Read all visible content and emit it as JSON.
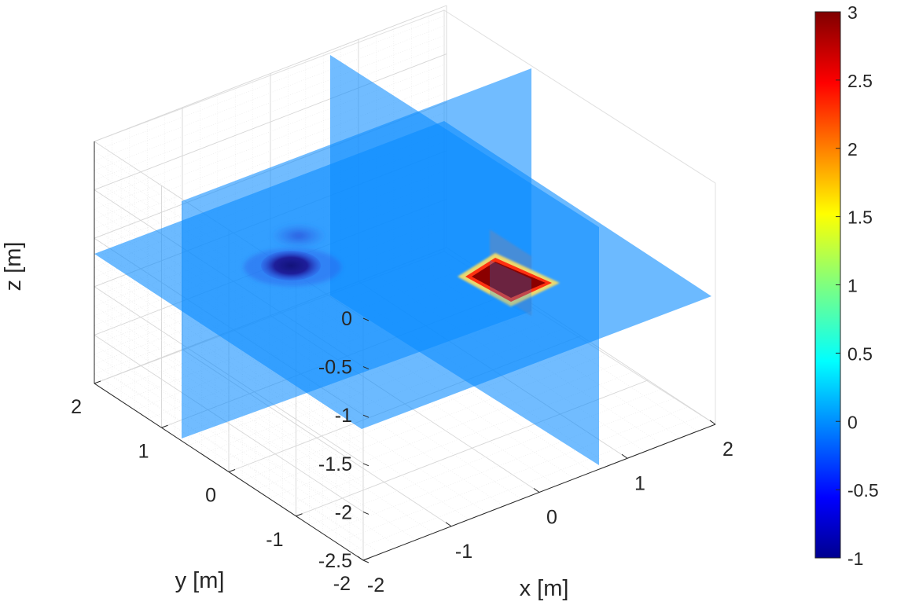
{
  "chart_data": {
    "type": "volumetric-slice",
    "xlabel": "x [m]",
    "ylabel": "y [m]",
    "zlabel": "z [m]",
    "xlim": [
      -2,
      2
    ],
    "ylim": [
      -2,
      2
    ],
    "zlim": [
      -2.5,
      0
    ],
    "x_ticks": [
      "-2",
      "-1",
      "0",
      "1",
      "2"
    ],
    "y_ticks": [
      "-2",
      "-1",
      "0",
      "1",
      "2"
    ],
    "z_ticks": [
      "0",
      "-0.5",
      "-1",
      "-1.5",
      "-2",
      "-2.5"
    ],
    "grid": "on (major + minor)",
    "colormap": "jet",
    "colorbar": {
      "placement": "right",
      "limits": [
        -1,
        3
      ],
      "ticks": [
        "3",
        "2.5",
        "2",
        "1.5",
        "1",
        "0.5",
        "0",
        "-0.5",
        "-1"
      ]
    },
    "slices": [
      {
        "plane": "z",
        "value": -1.25
      },
      {
        "plane": "x",
        "value": 0
      },
      {
        "plane": "y",
        "value": 0
      }
    ],
    "anomalies": [
      {
        "shape": "cylinder",
        "value": -1,
        "center": [
          -1,
          1,
          -1.25
        ]
      },
      {
        "shape": "square plate",
        "value": 3,
        "center": [
          1,
          -1,
          -1.25
        ]
      }
    ],
    "background_value": 0,
    "colors": {
      "slice": "#0a8cff",
      "negative_anomaly": "#1a1a8c",
      "positive_anomaly": "#8b0000"
    }
  }
}
